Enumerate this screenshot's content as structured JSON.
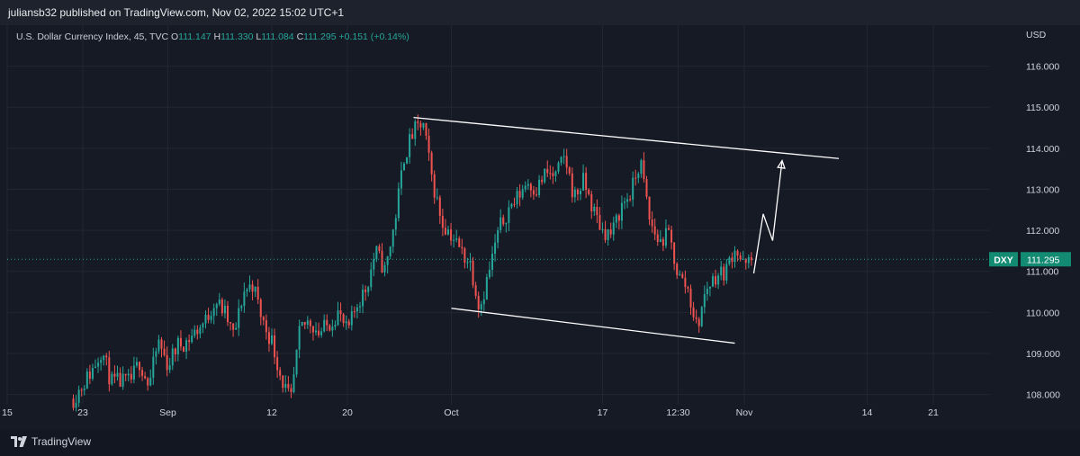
{
  "publisher": "juliansb32 published on TradingView.com, Nov 02, 2022 15:02 UTC+1",
  "legend": {
    "symbol": "U.S. Dollar Currency Index, 45, TVC",
    "open_label": "O",
    "open": "111.147",
    "high_label": "H",
    "high": "111.330",
    "low_label": "L",
    "low": "111.084",
    "close_label": "C",
    "close": "111.295",
    "change": "+0.151 (+0.14%)"
  },
  "brand": {
    "name": "TradingView",
    "icon": "tradingview-logo-icon"
  },
  "colors": {
    "up": "#26a69a",
    "down": "#ef5350",
    "bg": "#161a25",
    "grid": "#232632",
    "drawing": "#ffffff",
    "badge": "#138a72"
  },
  "chart_data": {
    "type": "candlestick",
    "currency_label": "USD",
    "symbol_badge": "DXY",
    "last_price": "111.295",
    "ylim": [
      107.75,
      117.0
    ],
    "y_ticks": [
      {
        "value": 116.0,
        "label": "116.000"
      },
      {
        "value": 115.0,
        "label": "115.000"
      },
      {
        "value": 114.0,
        "label": "114.000"
      },
      {
        "value": 113.0,
        "label": "113.000"
      },
      {
        "value": 112.0,
        "label": "112.000"
      },
      {
        "value": 111.0,
        "label": "111.000"
      },
      {
        "value": 110.0,
        "label": "110.000"
      },
      {
        "value": 109.0,
        "label": "109.000"
      },
      {
        "value": 108.0,
        "label": "108.000"
      }
    ],
    "x_ticks": [
      {
        "date": "2022-08-15",
        "label": "15"
      },
      {
        "date": "2022-08-23",
        "label": "23"
      },
      {
        "date": "2022-09-01",
        "label": "Sep"
      },
      {
        "date": "2022-09-12",
        "label": "12"
      },
      {
        "date": "2022-09-20",
        "label": "20"
      },
      {
        "date": "2022-10-01",
        "label": "Oct"
      },
      {
        "date": "2022-10-17",
        "label": "17"
      },
      {
        "date": "2022-10-25",
        "label": "12:30"
      },
      {
        "date": "2022-11-01",
        "label": "Nov"
      },
      {
        "date": "2022-11-14",
        "label": "14"
      },
      {
        "date": "2022-11-21",
        "label": "21"
      }
    ],
    "price_path": [
      [
        "2022-08-22",
        107.9
      ],
      [
        "2022-08-24",
        108.6
      ],
      [
        "2022-08-25",
        109.1
      ],
      [
        "2022-08-26",
        108.3
      ],
      [
        "2022-08-28",
        108.3
      ],
      [
        "2022-08-29",
        108.8
      ],
      [
        "2022-08-30",
        108.2
      ],
      [
        "2022-08-31",
        109.3
      ],
      [
        "2022-09-01",
        108.7
      ],
      [
        "2022-09-02",
        109.2
      ],
      [
        "2022-09-03",
        109.3
      ],
      [
        "2022-09-05",
        109.8
      ],
      [
        "2022-09-06",
        110.3
      ],
      [
        "2022-09-07",
        110.0
      ],
      [
        "2022-09-08",
        109.4
      ],
      [
        "2022-09-09",
        110.5
      ],
      [
        "2022-09-10",
        110.7
      ],
      [
        "2022-09-11",
        109.8
      ],
      [
        "2022-09-12",
        109.3
      ],
      [
        "2022-09-13",
        108.4
      ],
      [
        "2022-09-14",
        107.8
      ],
      [
        "2022-09-15",
        109.6
      ],
      [
        "2022-09-16",
        109.8
      ],
      [
        "2022-09-17",
        109.5
      ],
      [
        "2022-09-18",
        109.7
      ],
      [
        "2022-09-19",
        110.0
      ],
      [
        "2022-09-20",
        109.5
      ],
      [
        "2022-09-21",
        110.2
      ],
      [
        "2022-09-22",
        110.6
      ],
      [
        "2022-09-23",
        111.5
      ],
      [
        "2022-09-24",
        111.0
      ],
      [
        "2022-09-25",
        112.2
      ],
      [
        "2022-09-26",
        113.8
      ],
      [
        "2022-09-27",
        114.4
      ],
      [
        "2022-09-28",
        114.6
      ],
      [
        "2022-09-29",
        113.2
      ],
      [
        "2022-09-30",
        112.2
      ],
      [
        "2022-10-01",
        111.9
      ],
      [
        "2022-10-02",
        111.5
      ],
      [
        "2022-10-03",
        111.2
      ],
      [
        "2022-10-04",
        110.1
      ],
      [
        "2022-10-05",
        111.0
      ],
      [
        "2022-10-06",
        112.0
      ],
      [
        "2022-10-07",
        112.5
      ],
      [
        "2022-10-08",
        112.8
      ],
      [
        "2022-10-09",
        113.2
      ],
      [
        "2022-10-10",
        113.0
      ],
      [
        "2022-10-11",
        113.4
      ],
      [
        "2022-10-12",
        113.3
      ],
      [
        "2022-10-13",
        113.8
      ],
      [
        "2022-10-14",
        112.8
      ],
      [
        "2022-10-15",
        113.2
      ],
      [
        "2022-10-16",
        112.5
      ],
      [
        "2022-10-17",
        112.0
      ],
      [
        "2022-10-18",
        111.9
      ],
      [
        "2022-10-19",
        112.6
      ],
      [
        "2022-10-20",
        112.9
      ],
      [
        "2022-10-21",
        113.7
      ],
      [
        "2022-10-22",
        112.2
      ],
      [
        "2022-10-23",
        111.7
      ],
      [
        "2022-10-24",
        111.9
      ],
      [
        "2022-10-25",
        110.9
      ],
      [
        "2022-10-26",
        110.6
      ],
      [
        "2022-10-27",
        109.6
      ],
      [
        "2022-10-28",
        110.6
      ],
      [
        "2022-10-29",
        110.9
      ],
      [
        "2022-10-30",
        111.0
      ],
      [
        "2022-10-31",
        111.6
      ],
      [
        "2022-11-01",
        111.1
      ],
      [
        "2022-11-02",
        111.3
      ]
    ],
    "annotations": {
      "upper_channel": [
        [
          "2022-09-27",
          114.75
        ],
        [
          "2022-11-11",
          113.75
        ]
      ],
      "lower_channel": [
        [
          "2022-10-01",
          110.1
        ],
        [
          "2022-10-31",
          109.25
        ]
      ],
      "projection_path": [
        [
          "2022-11-02",
          110.95
        ],
        [
          "2022-11-03",
          112.4
        ],
        [
          "2022-11-04",
          111.75
        ],
        [
          "2022-11-05",
          113.7
        ]
      ]
    }
  }
}
